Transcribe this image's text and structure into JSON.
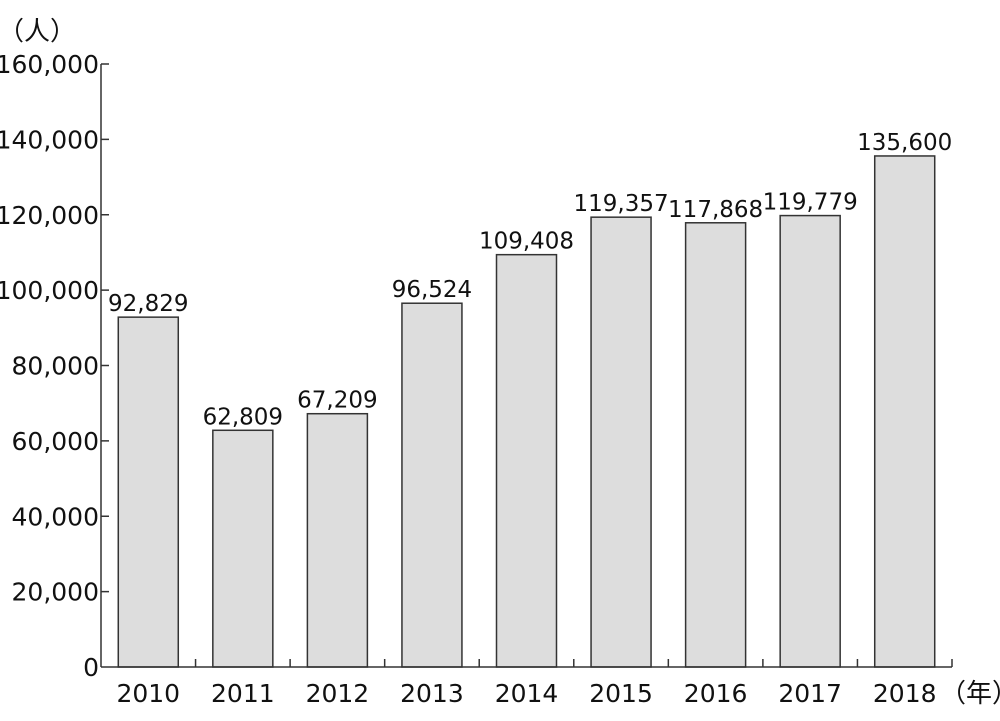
{
  "chart_data": {
    "type": "bar",
    "title": "",
    "ylabel": "（人）",
    "xlabel": "（年）",
    "categories": [
      "2010",
      "2011",
      "2012",
      "2013",
      "2014",
      "2015",
      "2016",
      "2017",
      "2018"
    ],
    "values": [
      92829,
      62809,
      67209,
      96524,
      109408,
      119357,
      117868,
      119779,
      135600
    ],
    "data_labels": [
      "92,829",
      "62,809",
      "67,209",
      "96,524",
      "109,408",
      "119,357",
      "117,868",
      "119,779",
      "135,600"
    ],
    "ylim": [
      0,
      160000
    ],
    "yticks": [
      0,
      20000,
      40000,
      60000,
      80000,
      100000,
      120000,
      140000,
      160000
    ],
    "ytick_labels": [
      "0",
      "20,000",
      "40,000",
      "60,000",
      "80,000",
      "100,000",
      "120,000",
      "140,000",
      "160,000"
    ],
    "grid": false,
    "bar_color": "#dddddd",
    "bar_edge_color": "#333333"
  }
}
